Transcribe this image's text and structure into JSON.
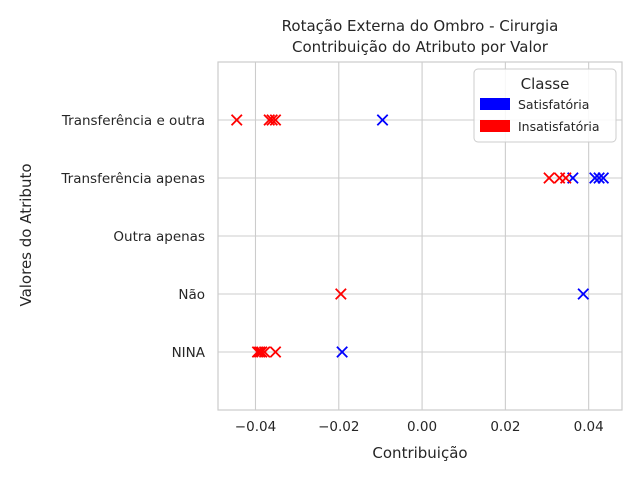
{
  "chart_data": {
    "type": "scatter",
    "title_line1": "Rotação Externa do Ombro - Cirurgia",
    "title_line2": "Contribuição do Atributo por Valor",
    "xlabel": "Contribuição",
    "ylabel": "Valores do Atributo",
    "xlim": [
      -0.049,
      0.048
    ],
    "x_ticks": [
      -0.04,
      -0.02,
      0.0,
      0.02,
      0.04
    ],
    "x_tick_labels": [
      "−0.04",
      "−0.02",
      "0.00",
      "0.02",
      "0.04"
    ],
    "categories": [
      "NINA",
      "Não",
      "Outra apenas",
      "Transferência apenas",
      "Transferência e outra"
    ],
    "grid": true,
    "marker": "x",
    "legend": {
      "title": "Classe",
      "placement": "top-right",
      "entries": [
        {
          "label": "Satisfatória",
          "color": "#0000ff"
        },
        {
          "label": "Insatisfatória",
          "color": "#ff0000"
        }
      ]
    },
    "series": [
      {
        "name": "Satisfatória",
        "color": "#0000ff",
        "points": [
          {
            "category": "Transferência e outra",
            "x": -0.0095
          },
          {
            "category": "Transferência apenas",
            "x": 0.0362
          },
          {
            "category": "Transferência apenas",
            "x": 0.0415
          },
          {
            "category": "Transferência apenas",
            "x": 0.0425
          },
          {
            "category": "Transferência apenas",
            "x": 0.0435
          },
          {
            "category": "Não",
            "x": 0.0387
          },
          {
            "category": "NINA",
            "x": -0.0192
          }
        ]
      },
      {
        "name": "Insatisfatória",
        "color": "#ff0000",
        "points": [
          {
            "category": "Transferência e outra",
            "x": -0.0445
          },
          {
            "category": "Transferência e outra",
            "x": -0.0367
          },
          {
            "category": "Transferência e outra",
            "x": -0.036
          },
          {
            "category": "Transferência e outra",
            "x": -0.0352
          },
          {
            "category": "Transferência apenas",
            "x": 0.0305
          },
          {
            "category": "Transferência apenas",
            "x": 0.033
          },
          {
            "category": "Transferência apenas",
            "x": 0.0345
          },
          {
            "category": "Não",
            "x": -0.0195
          },
          {
            "category": "NINA",
            "x": -0.0395
          },
          {
            "category": "NINA",
            "x": -0.039
          },
          {
            "category": "NINA",
            "x": -0.0385
          },
          {
            "category": "NINA",
            "x": -0.0378
          },
          {
            "category": "NINA",
            "x": -0.0352
          }
        ]
      }
    ]
  }
}
